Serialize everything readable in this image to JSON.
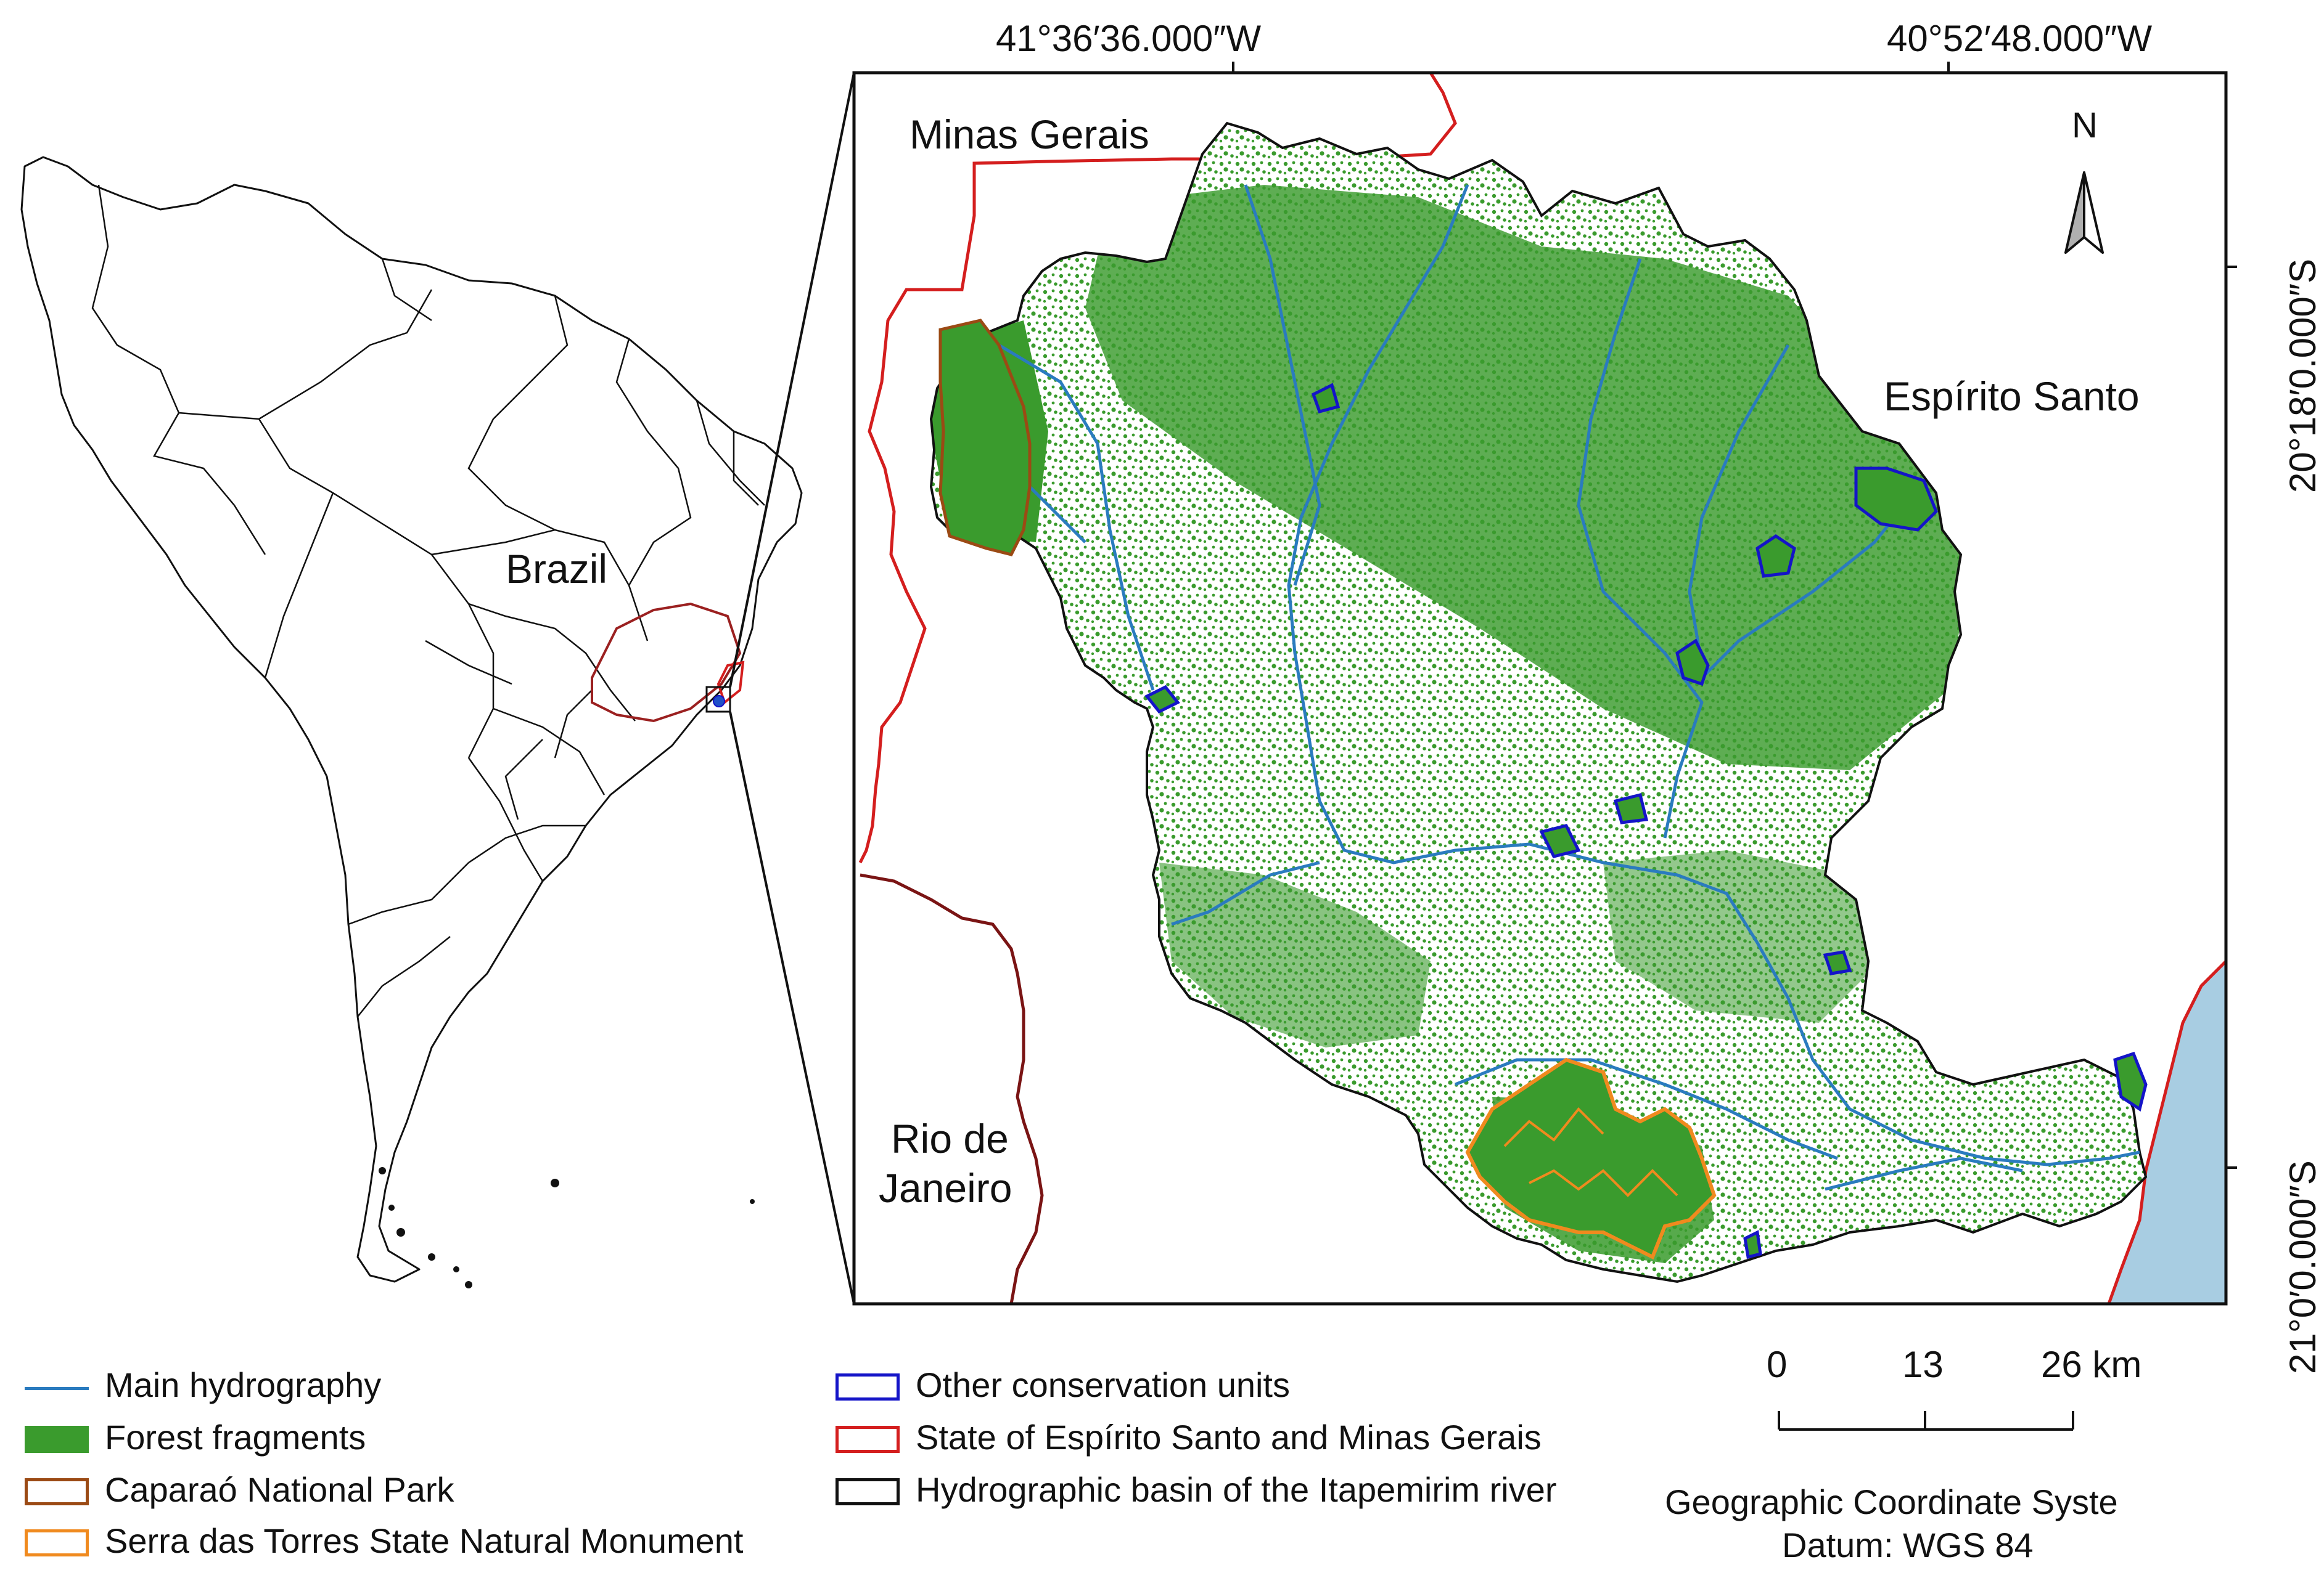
{
  "colors": {
    "forest": "#3a9b2d",
    "hydrography": "#2a7bbf",
    "caparao": "#9b4a14",
    "serra_torres": "#f08a1e",
    "other_units": "#1414c8",
    "state_border": "#d41e1e",
    "basin": "#111111",
    "ocean": "#a8cde2"
  },
  "coordinates": {
    "lon_left": "41°36′36.000″W",
    "lon_right": "40°52′48.000″W",
    "lat_top": "20°18′0.000″S",
    "lat_bottom": "21°0′0.000″S"
  },
  "labels": {
    "minas_gerais": "Minas Gerais",
    "espirito_santo": "Espírito Santo",
    "rio_de_janeiro_line1": "Rio de",
    "rio_de_janeiro_line2": "Janeiro",
    "brazil": "Brazil",
    "north": "N"
  },
  "legend": [
    {
      "label": "Main hydrography",
      "symbol": "line",
      "color_key": "hydrography"
    },
    {
      "label": "Forest fragments",
      "symbol": "fill",
      "color_key": "forest"
    },
    {
      "label": "Caparaó National Park",
      "symbol": "outline",
      "color_key": "caparao"
    },
    {
      "label": "Serra das Torres State Natural Monument",
      "symbol": "outline",
      "color_key": "serra_torres"
    },
    {
      "label": "Other conservation units",
      "symbol": "outline",
      "color_key": "other_units"
    },
    {
      "label": "State of Espírito Santo and Minas Gerais",
      "symbol": "outline",
      "color_key": "state_border"
    },
    {
      "label": "Hydrographic basin of the Itapemirim river",
      "symbol": "outline",
      "color_key": "basin"
    }
  ],
  "scale_bar": {
    "ticks": [
      "0",
      "13",
      "26 km"
    ]
  },
  "footer": {
    "crs": "Geographic Coordinate Syste",
    "datum": "Datum: WGS 84"
  }
}
